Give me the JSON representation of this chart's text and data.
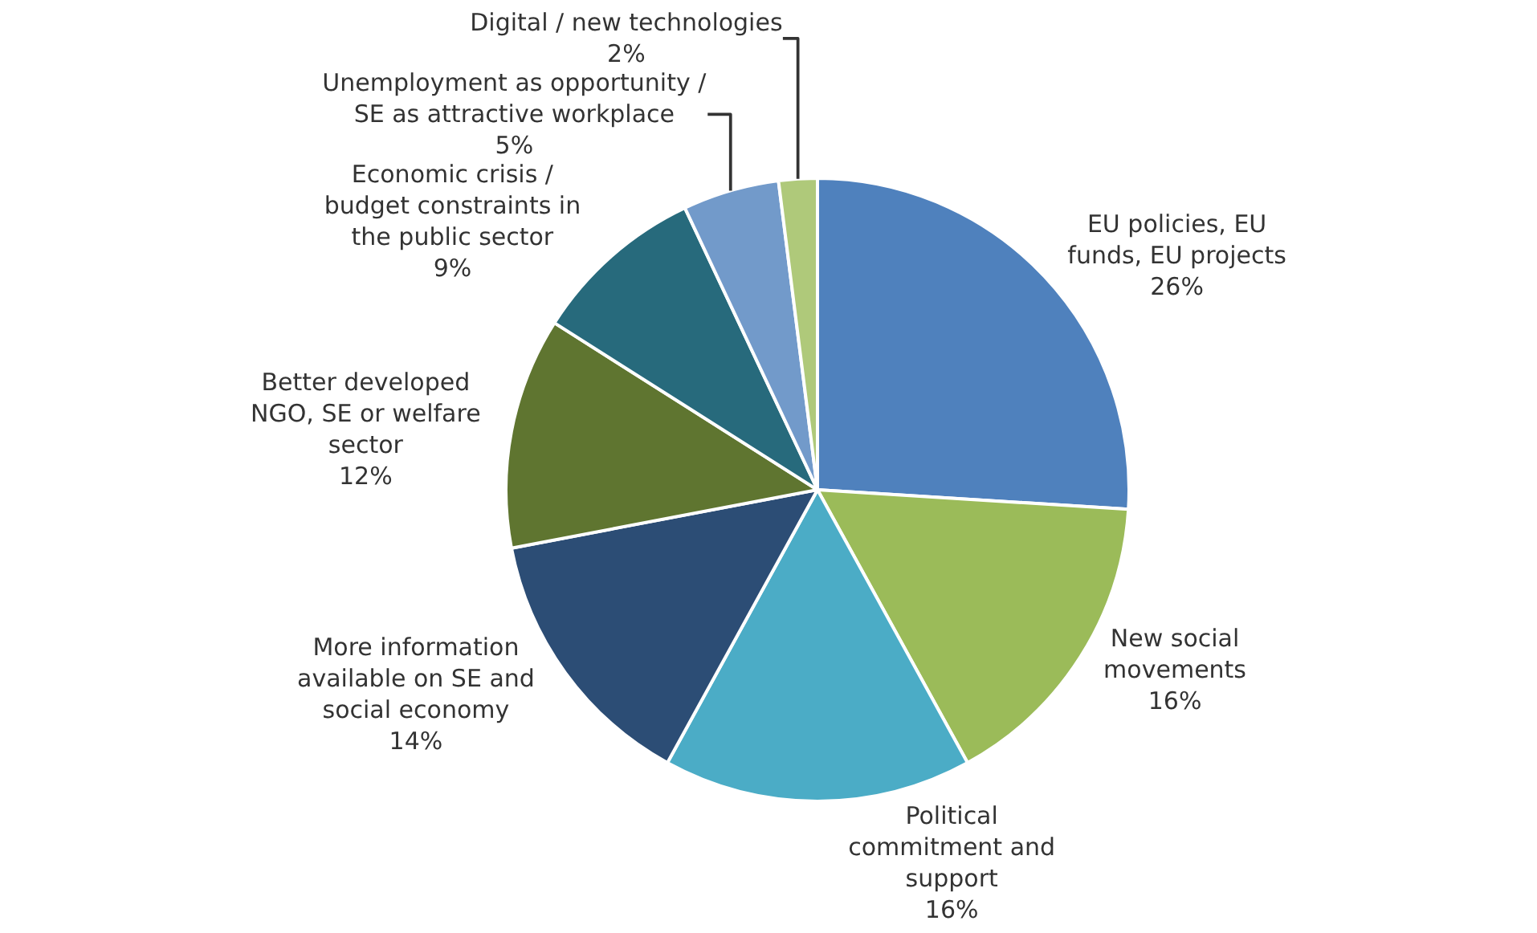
{
  "chart_data": {
    "type": "pie",
    "categories": [
      "EU policies, EU funds, EU projects",
      "New social movements",
      "Political commitment and support",
      "More information available on SE and social economy",
      "Better developed NGO, SE or welfare sector",
      "Economic crisis / budget constraints in the public sector",
      "Unemployment as opportunity / SE as attractive workplace",
      "Digital / new technologies"
    ],
    "values": [
      26,
      16,
      16,
      14,
      12,
      9,
      5,
      2
    ],
    "value_labels": [
      "26%",
      "16%",
      "16%",
      "14%",
      "12%",
      "9%",
      "5%",
      "2%"
    ],
    "colors": [
      "#4f81bd",
      "#9bbb59",
      "#4bacc6",
      "#2c4d75",
      "#5f7530",
      "#276a7c",
      "#729aca",
      "#afc97a"
    ],
    "legend": false
  }
}
